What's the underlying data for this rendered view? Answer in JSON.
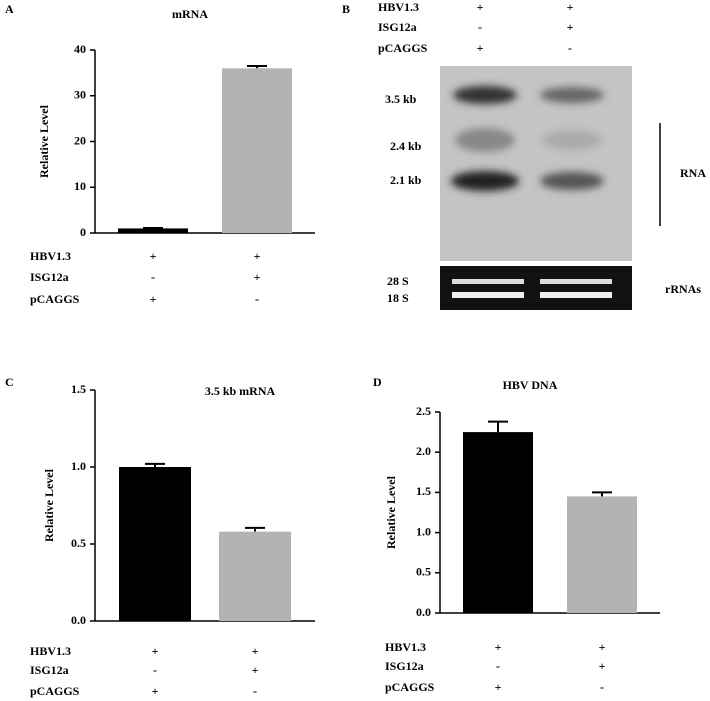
{
  "chart_data": [
    {
      "type": "bar",
      "panel": "A",
      "title": "mRNA",
      "y_label": "Relative Level",
      "values": [
        1,
        36
      ],
      "errors": [
        0.1,
        0.5
      ],
      "colors": [
        "#000000",
        "#b3b3b3"
      ],
      "ylim": [
        0,
        40
      ],
      "yticks": [
        0,
        10,
        20,
        30,
        40
      ],
      "conditions": [
        {
          "label": "HBV1.3",
          "values": [
            "+",
            "+"
          ]
        },
        {
          "label": "ISG12a",
          "values": [
            "-",
            "+"
          ]
        },
        {
          "label": "pCAGGS",
          "values": [
            "+",
            "-"
          ]
        }
      ]
    },
    {
      "type": "bar",
      "panel": "C",
      "title": "3.5 kb mRNA",
      "y_label": "Relative Level",
      "values": [
        1.0,
        0.58
      ],
      "errors": [
        0.02,
        0.025
      ],
      "colors": [
        "#000000",
        "#b3b3b3"
      ],
      "ylim": [
        0,
        1.5
      ],
      "yticks": [
        {
          "value": 0,
          "label": "0.0"
        },
        {
          "value": 0.5,
          "label": "0.5"
        },
        {
          "value": 1,
          "label": "1.0"
        },
        {
          "value": 1.5,
          "label": "1.5"
        }
      ],
      "conditions": [
        {
          "label": "HBV1.3",
          "values": [
            "+",
            "+"
          ]
        },
        {
          "label": "ISG12a",
          "values": [
            "-",
            "+"
          ]
        },
        {
          "label": "pCAGGS",
          "values": [
            "+",
            "-"
          ]
        }
      ]
    },
    {
      "type": "bar",
      "panel": "D",
      "title": "HBV DNA",
      "y_label": "Relative Level",
      "values": [
        2.25,
        1.45
      ],
      "errors": [
        0.13,
        0.05
      ],
      "colors": [
        "#000000",
        "#b3b3b3"
      ],
      "ylim": [
        0,
        2.5
      ],
      "yticks": [
        {
          "value": 0,
          "label": "0.0"
        },
        {
          "value": 0.5,
          "label": "0.5"
        },
        {
          "value": 1,
          "label": "1.0"
        },
        {
          "value": 1.5,
          "label": "1.5"
        },
        {
          "value": 2,
          "label": "2.0"
        },
        {
          "value": 2.5,
          "label": "2.5"
        }
      ],
      "conditions": [
        {
          "label": "HBV1.3",
          "values": [
            "+",
            "+"
          ]
        },
        {
          "label": "ISG12a",
          "values": [
            "-",
            "+"
          ]
        },
        {
          "label": "pCAGGS",
          "values": [
            "+",
            "-"
          ]
        }
      ]
    }
  ],
  "blot": {
    "panel": "B",
    "conditions": [
      {
        "label": "HBV1.3",
        "values": [
          "+",
          "+"
        ]
      },
      {
        "label": "ISG12a",
        "values": [
          "-",
          "+"
        ]
      },
      {
        "label": "pCAGGS",
        "values": [
          "+",
          "-"
        ]
      }
    ],
    "band_labels": [
      "3.5 kb",
      "2.4 kb",
      "2.1 kb"
    ],
    "rna_label": "RNA",
    "rrna_labels": [
      "28 S",
      "18 S"
    ],
    "rrna_group_label": "rRNAs"
  }
}
